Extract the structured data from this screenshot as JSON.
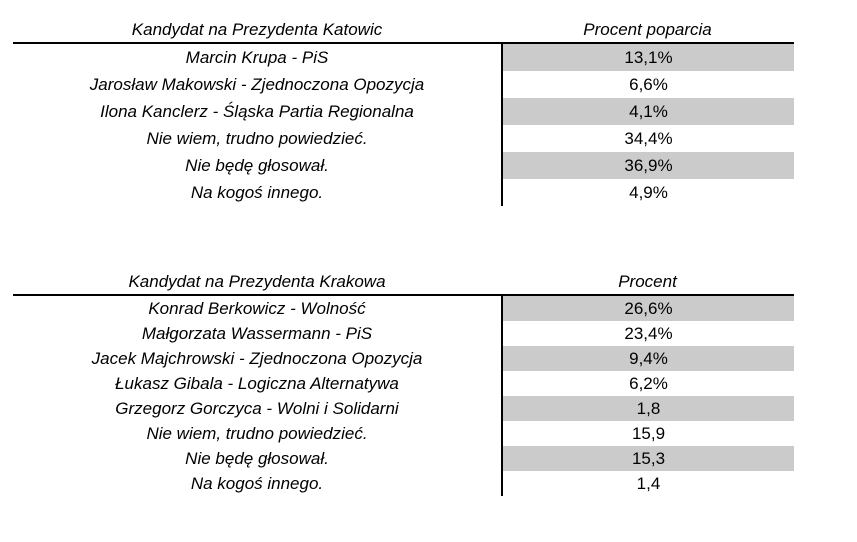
{
  "colors": {
    "stripe": "#CBCBCB",
    "rule": "#000000",
    "text": "#000000",
    "background": "#ffffff"
  },
  "tables": [
    {
      "id": "katowice",
      "header": {
        "candidate": "Kandydat na Prezydenta Katowic",
        "percent": "Procent poparcia"
      },
      "rows": [
        {
          "label": "Marcin Krupa - PiS",
          "value": "13,1%"
        },
        {
          "label": "Jarosław Makowski - Zjednoczona Opozycja",
          "value": "6,6%"
        },
        {
          "label": "Ilona Kanclerz - Śląska Partia Regionalna",
          "value": "4,1%"
        },
        {
          "label": "Nie wiem, trudno powiedzieć.",
          "value": "34,4%"
        },
        {
          "label": "Nie będę głosował.",
          "value": "36,9%"
        },
        {
          "label": "Na kogoś innego.",
          "value": "4,9%"
        }
      ]
    },
    {
      "id": "krakow",
      "header": {
        "candidate": "Kandydat na Prezydenta Krakowa",
        "percent": "Procent"
      },
      "rows": [
        {
          "label": "Konrad Berkowicz - Wolność",
          "value": "26,6%"
        },
        {
          "label": "Małgorzata Wassermann - PiS",
          "value": "23,4%"
        },
        {
          "label": "Jacek Majchrowski - Zjednoczona Opozycja",
          "value": "9,4%"
        },
        {
          "label": "Łukasz Gibala - Logiczna Alternatywa",
          "value": "6,2%"
        },
        {
          "label": "Grzegorz Gorczyca - Wolni i Solidarni",
          "value": "1,8"
        },
        {
          "label": "Nie wiem, trudno powiedzieć.",
          "value": "15,9"
        },
        {
          "label": "Nie będę głosował.",
          "value": "15,3"
        },
        {
          "label": "Na kogoś innego.",
          "value": "1,4"
        }
      ]
    }
  ],
  "chart_data": [
    {
      "type": "table",
      "title": "Kandydat na Prezydenta Katowic",
      "columns": [
        "Kandydat na Prezydenta Katowic",
        "Procent poparcia"
      ],
      "categories": [
        "Marcin Krupa - PiS",
        "Jarosław Makowski - Zjednoczona Opozycja",
        "Ilona Kanclerz - Śląska Partia Regionalna",
        "Nie wiem, trudno powiedzieć.",
        "Nie będę głosował.",
        "Na kogoś innego."
      ],
      "values": [
        13.1,
        6.6,
        4.1,
        34.4,
        36.9,
        4.9
      ]
    },
    {
      "type": "table",
      "title": "Kandydat na Prezydenta Krakowa",
      "columns": [
        "Kandydat na Prezydenta Krakowa",
        "Procent"
      ],
      "categories": [
        "Konrad Berkowicz - Wolność",
        "Małgorzata Wassermann - PiS",
        "Jacek Majchrowski - Zjednoczona Opozycja",
        "Łukasz Gibala - Logiczna Alternatywa",
        "Grzegorz Gorczyca - Wolni i Solidarni",
        "Nie wiem, trudno powiedzieć.",
        "Nie będę głosował.",
        "Na kogoś innego."
      ],
      "values": [
        26.6,
        23.4,
        9.4,
        6.2,
        1.8,
        15.9,
        15.3,
        1.4
      ]
    }
  ]
}
